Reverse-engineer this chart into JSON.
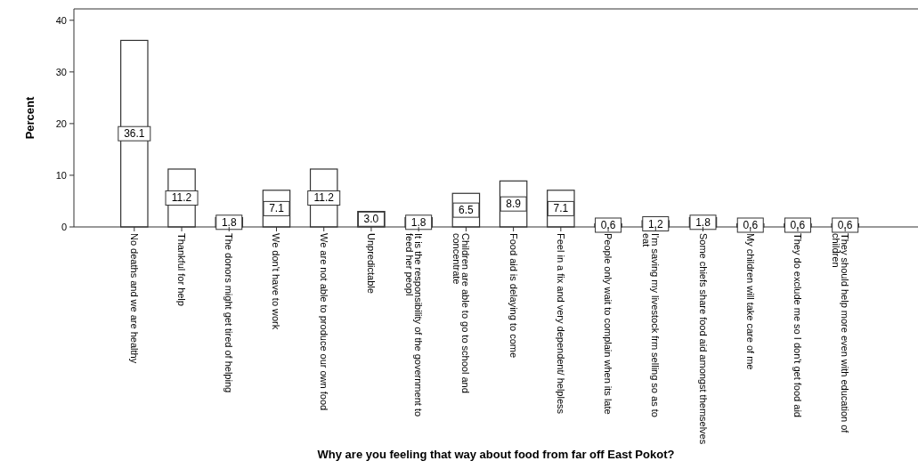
{
  "chart_data": {
    "type": "bar",
    "xlabel": "Why are you feeling that way about food from far off East Pokot?",
    "ylabel": "Percent",
    "categories": [
      "No deaths and we are healthy",
      "Thankful for help",
      "The donors might get tired of helping",
      "We don't have to work",
      "We are not able to produce our own food",
      "Unpredictable",
      "It is the responsibility of the government to feed her peopl",
      "Children are able to go to school and concentrate",
      "Food aid is delaying to come",
      "Feel in a fix and very dependent/ helpless",
      "People only wait to complain when its late",
      "I'm saving my livestock frm selling so as to eat",
      "Some chiefs share food aid amongst themselves",
      "My children will take care of me",
      "They do exclude me so I don't get food aid",
      "They should help more even with education of children"
    ],
    "values": [
      36.1,
      11.2,
      1.8,
      7.1,
      11.2,
      3.0,
      1.8,
      6.5,
      8.9,
      7.1,
      0.6,
      1.2,
      1.8,
      0.6,
      0.6,
      0.6
    ],
    "value_labels": [
      "36.1",
      "11.2",
      "1.8",
      "7.1",
      "11.2",
      "3.0",
      "1.8",
      "6.5",
      "8.9",
      "7.1",
      "0.6",
      "1.2",
      "1.8",
      "0.6",
      "0.6",
      "0.6"
    ],
    "color": "#ffffff",
    "ylim": [
      0,
      42.2
    ],
    "yticks": [
      0,
      10,
      20,
      30,
      40
    ],
    "grid": false
  }
}
